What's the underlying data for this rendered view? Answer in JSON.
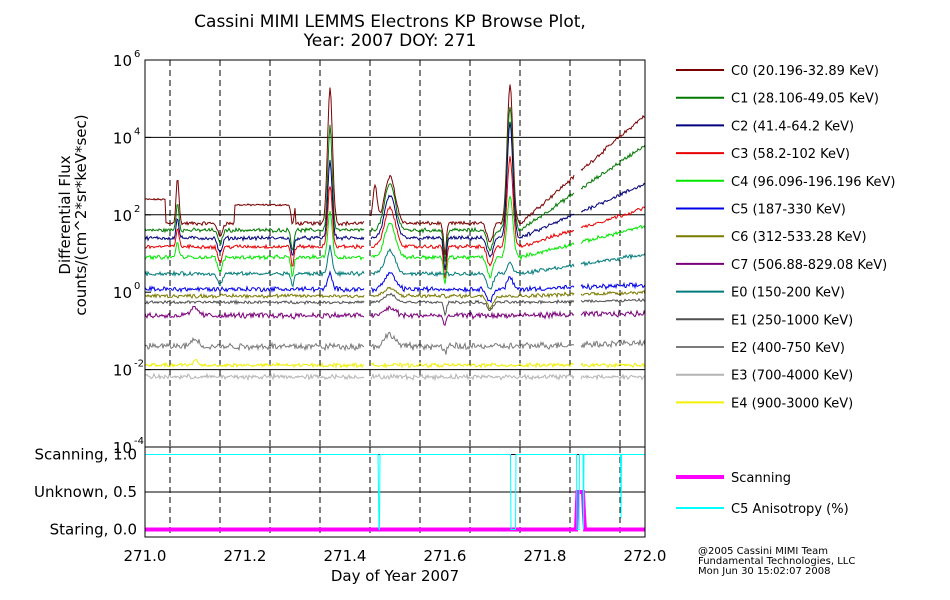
{
  "title_line1": "Cassini MIMI LEMMS Electrons KP Browse Plot,",
  "title_line2": "Year: 2007 DOY: 271",
  "ylabel_line1": "Differential Flux",
  "ylabel_line2": "counts/(cm^2*sr*keV*sec)",
  "xlabel": "Day of Year 2007",
  "footer": [
    "@2005 Cassini MIMI Team",
    "Fundamental Technologies, LLC",
    "Mon Jun 30 15:02:07 2008"
  ],
  "chart_data": [
    {
      "type": "line",
      "ylog": true,
      "xlim": [
        271.0,
        272.0
      ],
      "ylim": [
        0.0001,
        1000000
      ],
      "xticks": [
        "271.0",
        "271.2",
        "271.4",
        "271.6",
        "271.8",
        "272.0"
      ],
      "yticks": [
        {
          "base": "10",
          "exp": "6"
        },
        {
          "base": "10",
          "exp": "4"
        },
        {
          "base": "10",
          "exp": "2"
        },
        {
          "base": "10",
          "exp": "0"
        },
        {
          "base": "10",
          "exp": "-2"
        },
        {
          "base": "10",
          "exp": "-4"
        }
      ],
      "grid": "dashed vertical at 0.05 day, solid horizontal at each decade",
      "legend_position": "right",
      "data_gaps_x": [
        [
          271.44,
          271.45
        ],
        [
          271.86,
          271.87
        ]
      ],
      "series": [
        {
          "name": "C0 (20.196-32.89 KeV)",
          "color": "#7a0000",
          "base": 60,
          "noise": 0.04,
          "segments": [
            [
              271.0,
              271.04,
              250
            ],
            [
              271.18,
              271.3,
              180
            ]
          ],
          "spikes": [
            [
              271.065,
              0.004,
              1.2
            ],
            [
              271.37,
              0.007,
              3.5
            ],
            [
              271.46,
              0.006,
              1.0
            ],
            [
              271.49,
              0.015,
              1.2
            ],
            [
              271.73,
              0.008,
              3.6
            ]
          ],
          "dips": [
            [
              271.15,
              0.006,
              0.35
            ],
            [
              271.295,
              0.004,
              0.5
            ],
            [
              271.6,
              0.004,
              0.8
            ],
            [
              271.69,
              0.008,
              0.5
            ]
          ],
          "trend_end": 2.8
        },
        {
          "name": "C1 (28.106-49.05 KeV)",
          "color": "#007a00",
          "base": 40,
          "noise": 0.04,
          "spikes": [
            [
              271.065,
              0.004,
              0.7
            ],
            [
              271.37,
              0.006,
              2.7
            ],
            [
              271.49,
              0.015,
              1.2
            ],
            [
              271.73,
              0.008,
              3.2
            ]
          ],
          "dips": [
            [
              271.15,
              0.006,
              0.35
            ],
            [
              271.295,
              0.004,
              0.5
            ],
            [
              271.6,
              0.004,
              0.8
            ],
            [
              271.69,
              0.008,
              0.5
            ]
          ],
          "trend_end": 2.2
        },
        {
          "name": "C2 (41.4-64.2 KeV)",
          "color": "#00007a",
          "base": 25,
          "noise": 0.04,
          "spikes": [
            [
              271.065,
              0.004,
              0.5
            ],
            [
              271.37,
              0.006,
              2.0
            ],
            [
              271.49,
              0.015,
              1.1
            ],
            [
              271.73,
              0.008,
              3.0
            ]
          ],
          "dips": [
            [
              271.15,
              0.006,
              0.4
            ],
            [
              271.295,
              0.004,
              0.5
            ],
            [
              271.6,
              0.004,
              0.8
            ],
            [
              271.69,
              0.008,
              0.5
            ]
          ],
          "trend_end": 1.4
        },
        {
          "name": "C3 (58.2-102 KeV)",
          "color": "#e80000",
          "base": 15,
          "noise": 0.04,
          "spikes": [
            [
              271.065,
              0.004,
              0.5
            ],
            [
              271.37,
              0.006,
              1.6
            ],
            [
              271.49,
              0.015,
              1.0
            ],
            [
              271.73,
              0.008,
              2.3
            ]
          ],
          "dips": [
            [
              271.15,
              0.006,
              0.4
            ],
            [
              271.295,
              0.004,
              0.5
            ],
            [
              271.6,
              0.004,
              0.8
            ],
            [
              271.69,
              0.008,
              0.5
            ]
          ],
          "trend_end": 1.0
        },
        {
          "name": "C4 (96.096-196.196 KeV)",
          "color": "#00e800",
          "base": 8,
          "noise": 0.04,
          "spikes": [
            [
              271.065,
              0.004,
              0.4
            ],
            [
              271.37,
              0.006,
              1.2
            ],
            [
              271.49,
              0.015,
              0.9
            ],
            [
              271.73,
              0.008,
              1.6
            ]
          ],
          "dips": [
            [
              271.15,
              0.006,
              0.4
            ],
            [
              271.295,
              0.004,
              0.5
            ],
            [
              271.6,
              0.004,
              0.7
            ],
            [
              271.69,
              0.008,
              0.5
            ]
          ],
          "trend_end": 0.8
        },
        {
          "name": "C5 (187-330 KeV)",
          "color": "#0000e8",
          "base": 1.2,
          "noise": 0.05,
          "spikes": [
            [
              271.37,
              0.006,
              0.4
            ],
            [
              271.49,
              0.015,
              0.4
            ],
            [
              271.73,
              0.008,
              0.3
            ]
          ],
          "dips": [
            [
              271.69,
              0.008,
              0.3
            ]
          ],
          "trend_end": 0.1
        },
        {
          "name": "C6 (312-533.28 KeV)",
          "color": "#7a7a00",
          "base": 0.8,
          "noise": 0.04,
          "spikes": [
            [
              271.49,
              0.015,
              0.2
            ]
          ],
          "dips": [
            [
              271.69,
              0.008,
              0.3
            ]
          ],
          "trend_end": 0.1
        },
        {
          "name": "C7 (506.88-829.08 KeV)",
          "color": "#7a007a",
          "base": 0.25,
          "noise": 0.06,
          "spikes": [
            [
              271.1,
              0.01,
              0.2
            ],
            [
              271.49,
              0.015,
              0.2
            ]
          ],
          "dips": [
            [
              271.6,
              0.004,
              0.3
            ]
          ],
          "trend_end": 0.05
        },
        {
          "name": "E0 (150-200 KeV)",
          "color": "#007a7a",
          "base": 3,
          "noise": 0.04,
          "spikes": [
            [
              271.37,
              0.006,
              0.7
            ],
            [
              271.49,
              0.015,
              0.6
            ],
            [
              271.73,
              0.008,
              0.3
            ]
          ],
          "dips": [
            [
              271.15,
              0.006,
              0.3
            ],
            [
              271.295,
              0.004,
              0.3
            ],
            [
              271.69,
              0.008,
              0.4
            ]
          ],
          "trend_end": 0.5
        },
        {
          "name": "E1 (250-1000 KeV)",
          "color": "#505050",
          "base": 0.55,
          "noise": 0.03,
          "spikes": [
            [
              271.49,
              0.015,
              0.2
            ]
          ],
          "dips": [
            [
              271.6,
              0.004,
              0.3
            ],
            [
              271.69,
              0.008,
              0.2
            ]
          ],
          "trend_end": 0.05
        },
        {
          "name": "E2 (400-750 KeV)",
          "color": "#7a7a7a",
          "base": 0.04,
          "noise": 0.07,
          "spikes": [
            [
              271.1,
              0.01,
              0.2
            ],
            [
              271.49,
              0.015,
              0.3
            ]
          ],
          "dips": [
            [
              271.6,
              0.004,
              0.2
            ]
          ],
          "trend_end": 0.1
        },
        {
          "name": "E3 (700-4000 KeV)",
          "color": "#b4b4b4",
          "base": 0.0065,
          "noise": 0.05,
          "spikes": [],
          "dips": [],
          "trend_end": 0.0
        },
        {
          "name": "E4 (900-3000 KeV)",
          "color": "#f0f000",
          "base": 0.013,
          "noise": 0.04,
          "spikes": [
            [
              271.1,
              0.006,
              0.15
            ]
          ],
          "dips": [],
          "trend_end": 0.0
        }
      ]
    },
    {
      "type": "line",
      "xlim": [
        271.0,
        272.0
      ],
      "ylim": [
        -0.1,
        1.1
      ],
      "yticks": [
        "Staring, 0.0",
        "Unknown, 0.5",
        "Scanning, 1.0"
      ],
      "xticks": [
        "271.0",
        "271.2",
        "271.4",
        "271.6",
        "271.8",
        "272.0"
      ],
      "series": [
        {
          "name": "Scanning",
          "color": "#ff00ff",
          "points": [
            [
              271.0,
              0.0
            ],
            [
              271.862,
              0.0
            ],
            [
              271.865,
              0.5
            ],
            [
              271.876,
              0.5
            ],
            [
              271.878,
              0.2
            ],
            [
              271.88,
              0.0
            ],
            [
              272.0,
              0.0
            ]
          ]
        },
        {
          "name": "C5 Anisotropy (%)",
          "color": "#00ffff",
          "points": [
            [
              271.0,
              1.0
            ],
            [
              271.466,
              1.0
            ],
            [
              271.467,
              0.5
            ],
            [
              271.468,
              0.0
            ],
            [
              271.469,
              0.0
            ],
            [
              271.47,
              1.0
            ],
            [
              271.731,
              1.0
            ],
            [
              271.732,
              0.0
            ],
            [
              271.741,
              0.0
            ],
            [
              271.742,
              1.0
            ],
            [
              271.863,
              1.0
            ],
            [
              271.864,
              0.0
            ],
            [
              271.868,
              0.0
            ],
            [
              271.869,
              1.0
            ],
            [
              271.876,
              1.0
            ],
            [
              271.877,
              0.0
            ],
            [
              271.878,
              1.0
            ],
            [
              271.951,
              1.0
            ],
            [
              271.952,
              0.15
            ],
            [
              271.953,
              1.0
            ],
            [
              272.0,
              1.0
            ]
          ]
        }
      ]
    }
  ]
}
